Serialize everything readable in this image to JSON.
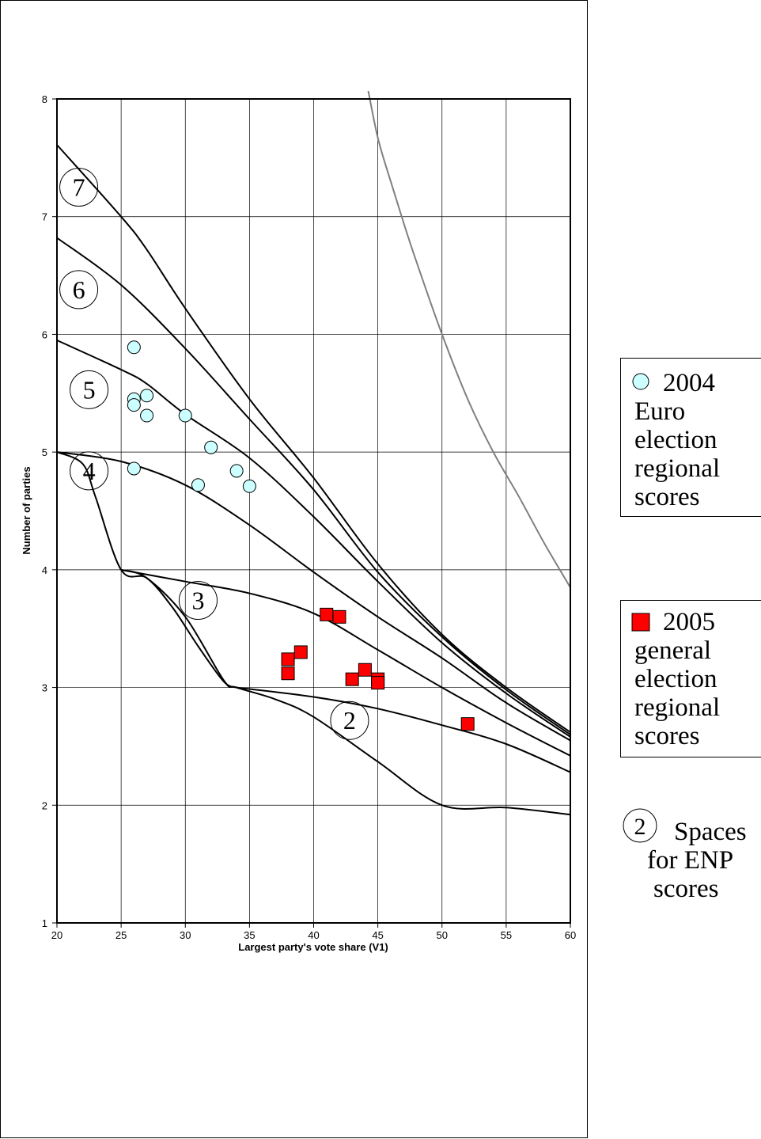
{
  "chart_data": {
    "type": "scatter",
    "xlabel": "Largest party's vote share (V1)",
    "ylabel": "Number of parties",
    "xlim": [
      20,
      60
    ],
    "ylim": [
      1,
      8
    ],
    "x_ticks": [
      20,
      25,
      30,
      35,
      40,
      45,
      50,
      55,
      60
    ],
    "y_ticks": [
      1,
      2,
      3,
      4,
      5,
      6,
      7,
      8
    ],
    "grid": true,
    "series": [
      {
        "name": "2004 Euro election regional scores",
        "marker": "circle",
        "color": "#ccffff",
        "points": [
          [
            26,
            5.89
          ],
          [
            26,
            5.45
          ],
          [
            26,
            5.4
          ],
          [
            27,
            5.48
          ],
          [
            27,
            5.31
          ],
          [
            30,
            5.31
          ],
          [
            32,
            5.04
          ],
          [
            34,
            4.84
          ],
          [
            35,
            4.71
          ],
          [
            31,
            4.72
          ],
          [
            26,
            4.86
          ]
        ]
      },
      {
        "name": "2005 general election regional scores",
        "marker": "square",
        "color": "#ff0000",
        "points": [
          [
            41,
            3.62
          ],
          [
            42,
            3.6
          ],
          [
            38,
            3.24
          ],
          [
            39,
            3.3
          ],
          [
            38,
            3.12
          ],
          [
            43,
            3.07
          ],
          [
            44,
            3.15
          ],
          [
            45,
            3.07
          ],
          [
            45,
            3.04
          ],
          [
            52,
            2.69
          ]
        ]
      }
    ],
    "boundary_curves": [
      {
        "label": "7",
        "points": [
          [
            20,
            7.61
          ],
          [
            25,
            7.0
          ],
          [
            27,
            6.72
          ],
          [
            30,
            6.22
          ],
          [
            35,
            5.45
          ],
          [
            40,
            4.78
          ],
          [
            45,
            4.05
          ],
          [
            50,
            3.45
          ],
          [
            55,
            3.0
          ],
          [
            60,
            2.62
          ]
        ]
      },
      {
        "label": "6",
        "points": [
          [
            20,
            6.82
          ],
          [
            25,
            6.42
          ],
          [
            30,
            5.88
          ],
          [
            35,
            5.28
          ],
          [
            40,
            4.68
          ],
          [
            45,
            3.98
          ],
          [
            50,
            3.43
          ],
          [
            55,
            2.98
          ],
          [
            60,
            2.6
          ]
        ]
      },
      {
        "label": "5",
        "points": [
          [
            20,
            5.95
          ],
          [
            25,
            5.7
          ],
          [
            27,
            5.58
          ],
          [
            30,
            5.32
          ],
          [
            35,
            4.95
          ],
          [
            40,
            4.45
          ],
          [
            45,
            3.9
          ],
          [
            50,
            3.38
          ],
          [
            55,
            2.95
          ],
          [
            60,
            2.58
          ]
        ]
      },
      {
        "label": "4",
        "points": [
          [
            20,
            5.0
          ],
          [
            25,
            4.92
          ],
          [
            30,
            4.72
          ],
          [
            35,
            4.38
          ],
          [
            40,
            3.98
          ],
          [
            45,
            3.6
          ],
          [
            50,
            3.25
          ],
          [
            55,
            2.87
          ],
          [
            60,
            2.55
          ]
        ]
      },
      {
        "label": "3",
        "points": [
          [
            25,
            4.0
          ],
          [
            30,
            3.9
          ],
          [
            35,
            3.8
          ],
          [
            40,
            3.63
          ],
          [
            45,
            3.32
          ],
          [
            50,
            3.0
          ],
          [
            55,
            2.7
          ],
          [
            60,
            2.42
          ]
        ]
      },
      {
        "label": "2",
        "points": [
          [
            34,
            3.0
          ],
          [
            40,
            2.92
          ],
          [
            45,
            2.82
          ],
          [
            50,
            2.68
          ],
          [
            55,
            2.52
          ],
          [
            60,
            2.28
          ]
        ]
      },
      {
        "label": "",
        "points": [
          [
            20,
            5.0
          ],
          [
            22,
            4.9
          ],
          [
            23,
            4.62
          ],
          [
            25,
            4.0
          ],
          [
            27,
            3.93
          ],
          [
            29,
            3.68
          ],
          [
            31,
            3.35
          ],
          [
            33,
            3.05
          ],
          [
            34,
            3.0
          ]
        ]
      },
      {
        "label": "",
        "points": [
          [
            25,
            4.0
          ],
          [
            27,
            3.93
          ],
          [
            30,
            3.6
          ],
          [
            33,
            3.06
          ],
          [
            34,
            3.0
          ],
          [
            37,
            2.9
          ],
          [
            40,
            2.75
          ],
          [
            45,
            2.37
          ],
          [
            50,
            2.0
          ],
          [
            55,
            1.98
          ],
          [
            60,
            1.92
          ]
        ]
      }
    ],
    "upper_bound_curve": {
      "color": "#808080",
      "points": [
        [
          44.2,
          8.1
        ],
        [
          45,
          7.67
        ],
        [
          46,
          7.3
        ],
        [
          47,
          6.95
        ],
        [
          48,
          6.62
        ],
        [
          50,
          6.0
        ],
        [
          52,
          5.45
        ],
        [
          54,
          5.0
        ],
        [
          56,
          4.62
        ],
        [
          58,
          4.22
        ],
        [
          60,
          3.85
        ]
      ]
    },
    "curve_labels": [
      {
        "text": "7",
        "x": 21.7,
        "y": 7.25
      },
      {
        "text": "6",
        "x": 21.7,
        "y": 6.38
      },
      {
        "text": "5",
        "x": 22.5,
        "y": 5.53
      },
      {
        "text": "4",
        "x": 22.5,
        "y": 4.84
      },
      {
        "text": "3",
        "x": 31.0,
        "y": 3.74
      },
      {
        "text": "2",
        "x": 42.8,
        "y": 2.72
      }
    ],
    "legend": {
      "placement": "right",
      "entries": [
        {
          "marker": "circle",
          "color": "#ccffff",
          "lines": [
            "2004",
            "Euro",
            "election",
            "regional",
            "scores"
          ]
        },
        {
          "marker": "square",
          "color": "#ff0000",
          "lines": [
            "2005",
            "general",
            "election",
            "regional",
            "scores"
          ]
        },
        {
          "marker": "circled-number",
          "symbol": "2",
          "lines": [
            "Spaces",
            "for ENP",
            "scores"
          ]
        }
      ]
    }
  }
}
